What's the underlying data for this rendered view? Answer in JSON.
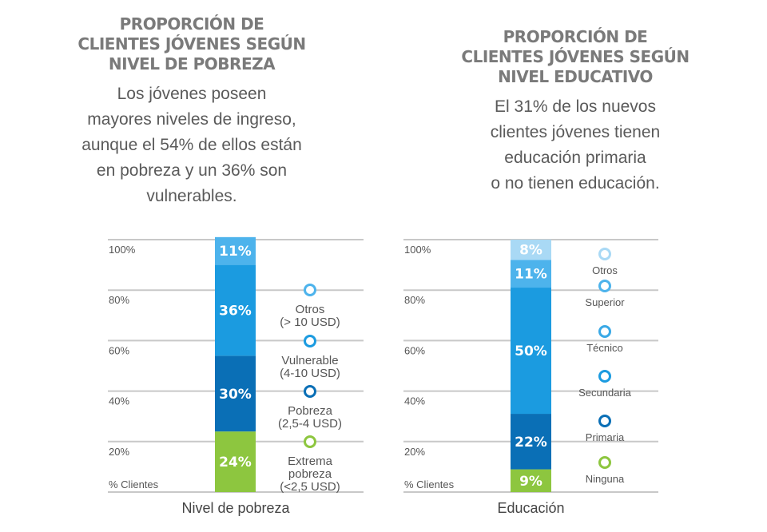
{
  "chart_data": [
    {
      "type": "bar",
      "stacked": true,
      "title": "PROPORCIÓN DE\nCLIENTES JÓVENES SEGÚN\nNIVEL DE POBREZA",
      "subtitle": "Los jóvenes poseen\nmayores niveles de ingreso,\naunque el 54% de ellos están\nen pobreza y un 36% son\nvulnerables.",
      "xlabel": "Nivel de pobreza",
      "ylabel": "% Clientes",
      "yticks": [
        "100%",
        "80%",
        "60%",
        "40%",
        "20%"
      ],
      "ylim": [
        0,
        100
      ],
      "grid": true,
      "legend_position": "right",
      "series": [
        {
          "name": "Extrema pobreza (<2,5 USD)",
          "value": 24,
          "label": "24%",
          "color": "#8dc63f",
          "legend": [
            "Extrema",
            "pobreza",
            "(<2,5 USD)"
          ]
        },
        {
          "name": "Pobreza (2,5-4 USD)",
          "value": 30,
          "label": "30%",
          "color": "#0a6fb6",
          "legend": [
            "Pobreza",
            "(2,5-4 USD)"
          ]
        },
        {
          "name": "Vulnerable (4-10 USD)",
          "value": 36,
          "label": "36%",
          "color": "#1b9be0",
          "legend": [
            "Vulnerable",
            "(4-10 USD)"
          ]
        },
        {
          "name": "Otros (> 10 USD)",
          "value": 11,
          "label": "11%",
          "color": "#4db3ec",
          "legend": [
            "Otros",
            "(> 10 USD)"
          ]
        }
      ]
    },
    {
      "type": "bar",
      "stacked": true,
      "title": "PROPORCIÓN DE\nCLIENTES JÓVENES SEGÚN\nNIVEL EDUCATIVO",
      "subtitle": "El 31% de los nuevos\nclientes jóvenes tienen\neducación primaria\no no tienen educación.",
      "xlabel": "Educación",
      "ylabel": "% Clientes",
      "yticks": [
        "100%",
        "80%",
        "60%",
        "40%",
        "20%"
      ],
      "ylim": [
        0,
        100
      ],
      "grid": true,
      "legend_position": "right",
      "series": [
        {
          "name": "Ninguna",
          "value": 9,
          "label": "9%",
          "color": "#8dc63f",
          "legend": [
            "Ninguna"
          ]
        },
        {
          "name": "Primaria",
          "value": 22,
          "label": "22%",
          "color": "#0a6fb6",
          "legend": [
            "Primaria"
          ]
        },
        {
          "name": "Secundaria",
          "value": 50,
          "label": "50%",
          "color": "#1b9be0",
          "legend": [
            "Secundaria"
          ]
        },
        {
          "name": "Técnico",
          "value": 0,
          "label": "",
          "color": "#3aa9e6",
          "legend": [
            "Técnico"
          ]
        },
        {
          "name": "Superior",
          "value": 11,
          "label": "11%",
          "color": "#4db3ec",
          "legend": [
            "Superior"
          ]
        },
        {
          "name": "Otros",
          "value": 8,
          "label": "8%",
          "color": "#a9d9f5",
          "legend": [
            "Otros"
          ]
        }
      ]
    }
  ]
}
